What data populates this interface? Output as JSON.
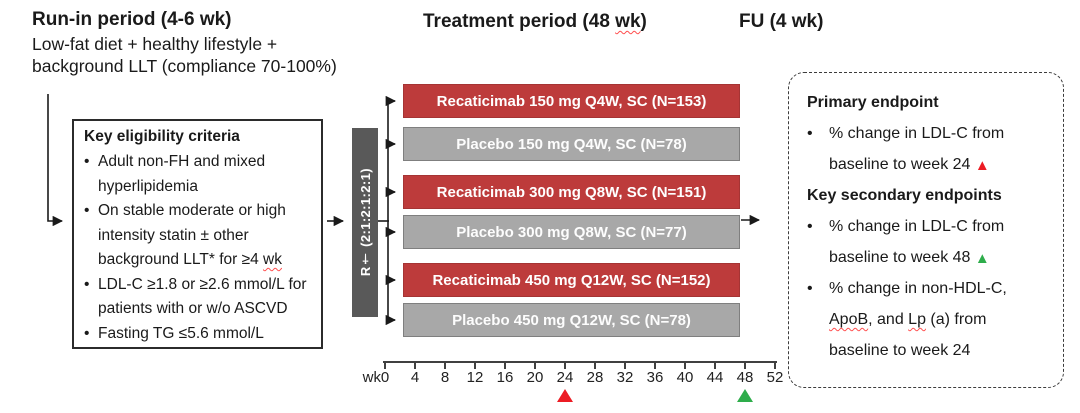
{
  "palette": {
    "active_arm": "#BD3B3B",
    "placebo_arm": "#A8A8A8",
    "placebo_border": "#7F7F7F",
    "randomization_bar": "#595959",
    "marker_red": "#EC1C24",
    "marker_green": "#2EAD4B",
    "wavy_underline": "#FF4D4D"
  },
  "headers": {
    "run_in": {
      "title": "Run-in period (4-6 wk)",
      "lines": [
        "Low-fat diet + healthy lifestyle +",
        "background LLT (compliance 70-100%)"
      ]
    },
    "treatment": {
      "segments": [
        {
          "t": "Treatment period (48 "
        },
        {
          "t": "wk",
          "s": "wavy"
        },
        {
          "t": ")"
        }
      ]
    },
    "follow_up": {
      "title": "FU (4 wk)"
    }
  },
  "eligibility_box": {
    "title": "Key eligibility criteria",
    "bullets": [
      {
        "lines": [
          [
            {
              "t": "Adult non-FH and mixed"
            }
          ],
          [
            {
              "t": "hyperlipidemia"
            }
          ]
        ]
      },
      {
        "lines": [
          [
            {
              "t": "On stable moderate or high"
            }
          ],
          [
            {
              "t": "intensity statin ± other"
            }
          ],
          [
            {
              "t": "background LLT* for ≥4 "
            },
            {
              "t": "wk",
              "s": "wavy"
            }
          ]
        ]
      },
      {
        "lines": [
          [
            {
              "t": "LDL-C ≥1.8 or ≥2.6 mmol/L for"
            }
          ],
          [
            {
              "t": "patients with or w/o ASCVD"
            }
          ]
        ]
      },
      {
        "lines": [
          [
            {
              "t": "Fasting TG ≤5.6 mmol/L"
            }
          ]
        ]
      }
    ]
  },
  "randomization": {
    "label": "R† (2:1:2:1:2:1)"
  },
  "arms": [
    {
      "type": "active",
      "label": "Recaticimab 150 mg Q4W, SC (N=153)"
    },
    {
      "type": "placebo",
      "label": "Placebo 150 mg Q4W, SC (N=78)"
    },
    {
      "type": "active",
      "label": "Recaticimab 300 mg Q8W, SC (N=151)"
    },
    {
      "type": "placebo",
      "label": "Placebo 300 mg Q8W, SC (N=77)"
    },
    {
      "type": "active",
      "label": "Recaticimab 450 mg Q12W, SC (N=152)"
    },
    {
      "type": "placebo",
      "label": "Placebo 450 mg Q12W, SC (N=78)"
    }
  ],
  "timeline": {
    "unit_label": "wk",
    "tick_weeks": [
      0,
      4,
      8,
      12,
      16,
      20,
      24,
      28,
      32,
      36,
      40,
      44,
      48,
      52
    ],
    "markers": [
      {
        "week": 24,
        "color_key": "marker_red",
        "name": "week24-primary-marker"
      },
      {
        "week": 48,
        "color_key": "marker_green",
        "name": "week48-secondary-marker"
      }
    ]
  },
  "endpoints_box": {
    "items": [
      {
        "type": "title",
        "text": "Primary endpoint"
      },
      {
        "type": "bullet",
        "lines": [
          [
            {
              "t": "% change in LDL-C from"
            }
          ],
          [
            {
              "t": "baseline to week 24 "
            },
            {
              "s": "tri",
              "color_key": "marker_red"
            }
          ]
        ]
      },
      {
        "type": "title",
        "text": "Key secondary endpoints"
      },
      {
        "type": "bullet",
        "lines": [
          [
            {
              "t": "% change in LDL-C from"
            }
          ],
          [
            {
              "t": "baseline to week 48 "
            },
            {
              "s": "tri",
              "color_key": "marker_green"
            }
          ]
        ]
      },
      {
        "type": "bullet",
        "lines": [
          [
            {
              "t": "% change in non-HDL-C,"
            }
          ],
          [
            {
              "t": "ApoB",
              "s": "wavy"
            },
            {
              "t": ", and "
            },
            {
              "t": "Lp",
              "s": "wavy"
            },
            {
              "t": " (a) from"
            }
          ],
          [
            {
              "t": "baseline to week 24"
            }
          ]
        ]
      }
    ]
  }
}
